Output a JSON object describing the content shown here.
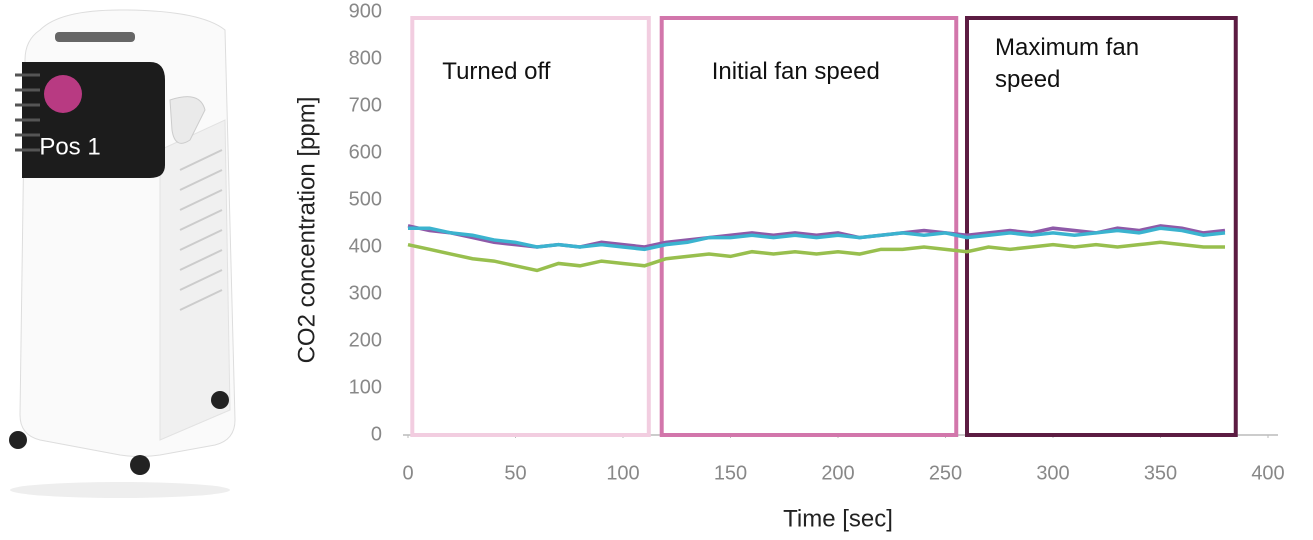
{
  "chart_data": {
    "type": "line",
    "xlabel": "Time [sec]",
    "ylabel": "CO2 concentration [ppm]",
    "xlim": [
      0,
      400
    ],
    "xticks": [
      0,
      50,
      100,
      150,
      200,
      250,
      300,
      350,
      400
    ],
    "ylim": [
      0,
      900
    ],
    "yticks": [
      0,
      100,
      200,
      300,
      400,
      500,
      600,
      700,
      800,
      900
    ],
    "grid": false,
    "x": [
      0,
      10,
      20,
      30,
      40,
      50,
      60,
      70,
      80,
      90,
      100,
      110,
      120,
      130,
      140,
      150,
      160,
      170,
      180,
      190,
      200,
      210,
      220,
      230,
      240,
      250,
      260,
      270,
      280,
      290,
      300,
      310,
      320,
      330,
      340,
      350,
      360,
      370,
      380
    ],
    "series": [
      {
        "color": "#8e5aa8",
        "values": [
          445,
          435,
          430,
          420,
          410,
          405,
          400,
          405,
          400,
          410,
          405,
          400,
          410,
          415,
          420,
          425,
          430,
          425,
          430,
          425,
          430,
          420,
          425,
          430,
          435,
          430,
          425,
          430,
          435,
          430,
          440,
          435,
          430,
          440,
          435,
          445,
          440,
          430,
          435
        ]
      },
      {
        "color": "#3bb3cf",
        "values": [
          440,
          440,
          430,
          425,
          415,
          410,
          400,
          405,
          400,
          405,
          400,
          395,
          405,
          410,
          420,
          420,
          425,
          420,
          425,
          420,
          425,
          420,
          425,
          430,
          425,
          430,
          420,
          425,
          430,
          425,
          430,
          425,
          430,
          435,
          430,
          440,
          435,
          425,
          430
        ]
      },
      {
        "color": "#98bf4e",
        "values": [
          405,
          395,
          385,
          375,
          370,
          360,
          350,
          365,
          360,
          370,
          365,
          360,
          375,
          380,
          385,
          380,
          390,
          385,
          390,
          385,
          390,
          385,
          395,
          395,
          400,
          395,
          390,
          400,
          395,
          400,
          405,
          400,
          405,
          400,
          405,
          410,
          405,
          400,
          400
        ]
      }
    ],
    "regions": [
      {
        "label": "Turned off",
        "x": [
          2,
          112
        ],
        "color": "#f2cde0"
      },
      {
        "label": "Initial fan speed",
        "x": [
          118,
          255
        ],
        "color": "#d276ab"
      },
      {
        "label": "Maximum fan speed",
        "x": [
          260,
          385
        ],
        "color": "#5c1c42"
      }
    ],
    "image_label": "Pos 1"
  }
}
